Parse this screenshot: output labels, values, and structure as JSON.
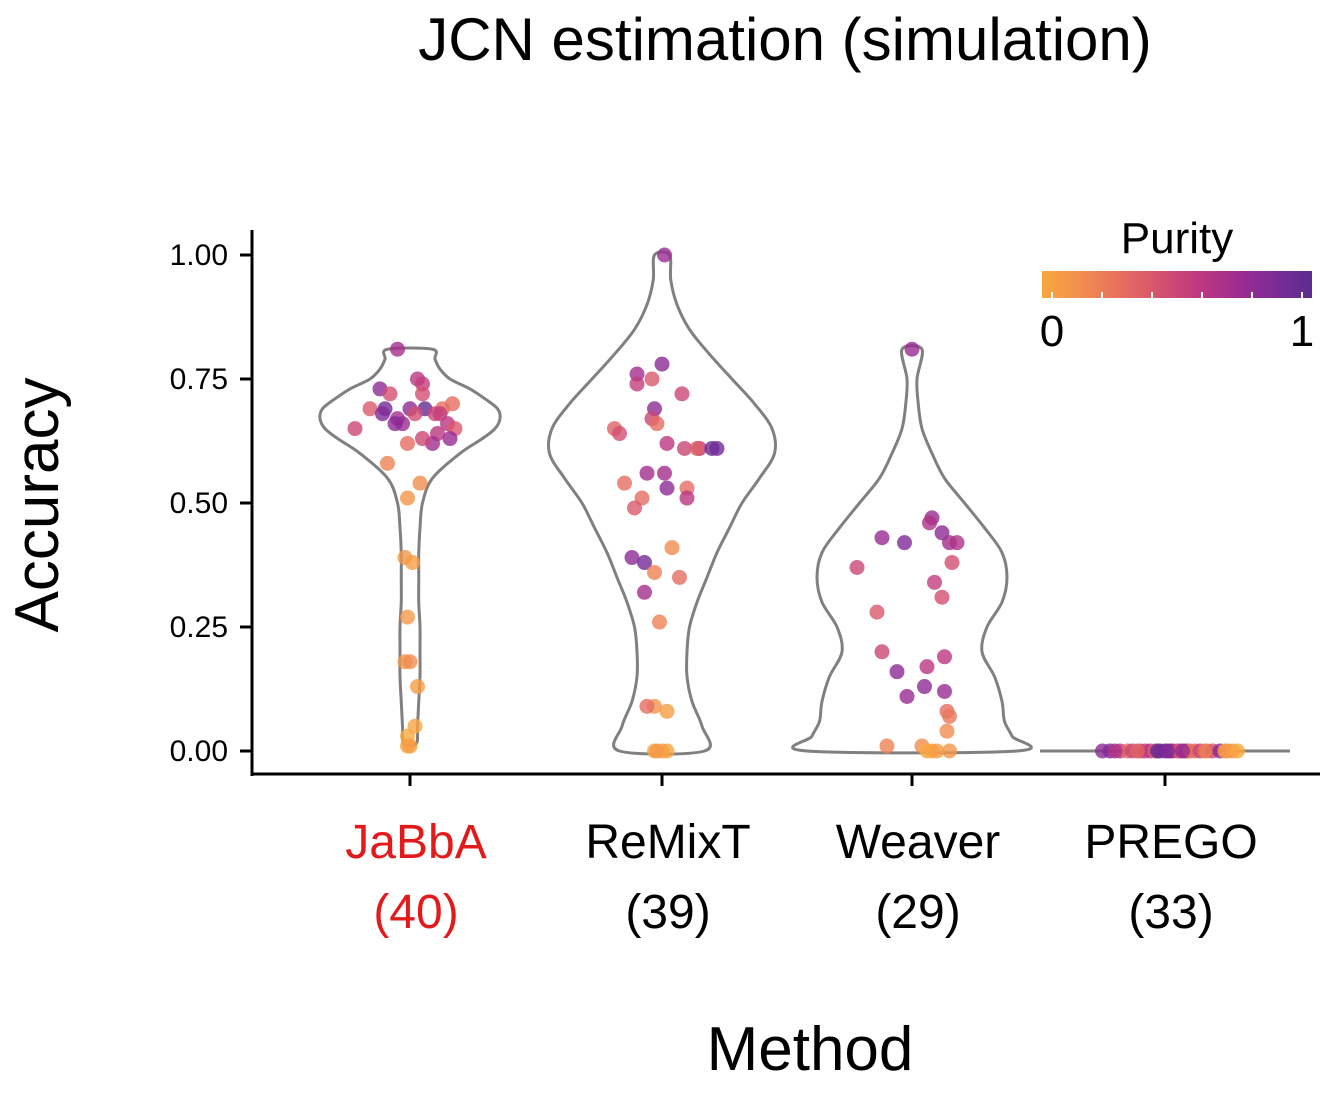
{
  "chart_data": {
    "type": "violin",
    "title": "JCN estimation (simulation)",
    "xlabel": "Method",
    "ylabel": "Accuracy",
    "ylim": [
      0,
      1
    ],
    "yticks": [
      "0.00",
      "0.25",
      "0.50",
      "0.75",
      "1.00"
    ],
    "highlight_color": "#e31a1c",
    "categories": [
      {
        "name": "JaBbA",
        "count_label": "(40)",
        "highlight": true,
        "points": [
          [
            -0.05,
            0.81,
            0.7
          ],
          [
            -0.12,
            0.73,
            0.8
          ],
          [
            0.03,
            0.75,
            0.6
          ],
          [
            0.05,
            0.74,
            0.55
          ],
          [
            -0.08,
            0.72,
            0.45
          ],
          [
            -0.16,
            0.69,
            0.4
          ],
          [
            -0.1,
            0.69,
            0.9
          ],
          [
            -0.11,
            0.68,
            0.85
          ],
          [
            0.0,
            0.69,
            0.8
          ],
          [
            0.06,
            0.69,
            0.95
          ],
          [
            0.13,
            0.69,
            0.3
          ],
          [
            0.17,
            0.7,
            0.3
          ],
          [
            0.1,
            0.68,
            0.5
          ],
          [
            -0.05,
            0.67,
            0.7
          ],
          [
            -0.03,
            0.66,
            0.75
          ],
          [
            0.12,
            0.68,
            0.55
          ],
          [
            0.15,
            0.66,
            0.6
          ],
          [
            -0.22,
            0.65,
            0.5
          ],
          [
            0.18,
            0.65,
            0.4
          ],
          [
            -0.06,
            0.66,
            0.8
          ],
          [
            0.11,
            0.64,
            0.6
          ],
          [
            0.16,
            0.63,
            0.75
          ],
          [
            0.09,
            0.62,
            0.7
          ],
          [
            0.05,
            0.63,
            0.5
          ],
          [
            -0.01,
            0.62,
            0.3
          ],
          [
            0.02,
            0.68,
            0.45
          ],
          [
            -0.09,
            0.58,
            0.2
          ],
          [
            0.04,
            0.54,
            0.15
          ],
          [
            -0.01,
            0.51,
            0.1
          ],
          [
            -0.02,
            0.39,
            0.1
          ],
          [
            0.01,
            0.38,
            0.05
          ],
          [
            -0.01,
            0.27,
            0.08
          ],
          [
            -0.02,
            0.18,
            0.1
          ],
          [
            0.0,
            0.18,
            0.15
          ],
          [
            0.03,
            0.13,
            0.05
          ],
          [
            0.02,
            0.05,
            0.03
          ],
          [
            -0.01,
            0.03,
            0.0
          ],
          [
            -0.01,
            0.01,
            0.02
          ],
          [
            0.0,
            0.01,
            0.05
          ],
          [
            0.05,
            0.72,
            0.45
          ]
        ],
        "violin": [
          [
            0.015,
            0.025
          ],
          [
            0.05,
            0.03
          ],
          [
            0.1,
            0.035
          ],
          [
            0.15,
            0.04
          ],
          [
            0.2,
            0.04
          ],
          [
            0.25,
            0.04
          ],
          [
            0.3,
            0.035
          ],
          [
            0.35,
            0.035
          ],
          [
            0.4,
            0.035
          ],
          [
            0.45,
            0.04
          ],
          [
            0.5,
            0.05
          ],
          [
            0.55,
            0.09
          ],
          [
            0.6,
            0.2
          ],
          [
            0.63,
            0.29
          ],
          [
            0.65,
            0.34
          ],
          [
            0.67,
            0.36
          ],
          [
            0.69,
            0.35
          ],
          [
            0.71,
            0.3
          ],
          [
            0.73,
            0.24
          ],
          [
            0.75,
            0.16
          ],
          [
            0.77,
            0.12
          ],
          [
            0.79,
            0.1
          ],
          [
            0.81,
            0.09
          ]
        ]
      },
      {
        "name": "ReMixT",
        "count_label": "(39)",
        "highlight": false,
        "points": [
          [
            0.01,
            1.0,
            0.75
          ],
          [
            0.0,
            0.78,
            0.8
          ],
          [
            -0.1,
            0.76,
            0.7
          ],
          [
            -0.04,
            0.75,
            0.4
          ],
          [
            -0.1,
            0.74,
            0.55
          ],
          [
            0.08,
            0.72,
            0.5
          ],
          [
            -0.03,
            0.69,
            0.8
          ],
          [
            -0.04,
            0.67,
            0.5
          ],
          [
            -0.02,
            0.66,
            0.3
          ],
          [
            -0.19,
            0.65,
            0.35
          ],
          [
            -0.17,
            0.64,
            0.45
          ],
          [
            0.02,
            0.62,
            0.6
          ],
          [
            0.09,
            0.61,
            0.5
          ],
          [
            0.15,
            0.61,
            0.6
          ],
          [
            0.2,
            0.61,
            0.95
          ],
          [
            0.22,
            0.61,
            0.9
          ],
          [
            0.14,
            0.61,
            0.35
          ],
          [
            -0.06,
            0.56,
            0.7
          ],
          [
            -0.15,
            0.54,
            0.3
          ],
          [
            0.01,
            0.56,
            0.7
          ],
          [
            0.1,
            0.53,
            0.3
          ],
          [
            0.02,
            0.53,
            0.8
          ],
          [
            0.1,
            0.51,
            0.6
          ],
          [
            -0.08,
            0.51,
            0.3
          ],
          [
            -0.11,
            0.49,
            0.4
          ],
          [
            0.04,
            0.41,
            0.15
          ],
          [
            -0.12,
            0.39,
            0.8
          ],
          [
            -0.07,
            0.38,
            0.9
          ],
          [
            -0.03,
            0.36,
            0.2
          ],
          [
            0.07,
            0.35,
            0.3
          ],
          [
            -0.07,
            0.32,
            0.7
          ],
          [
            -0.01,
            0.26,
            0.2
          ],
          [
            -0.03,
            0.09,
            0.1
          ],
          [
            0.02,
            0.08,
            0.05
          ],
          [
            -0.06,
            0.09,
            0.3
          ],
          [
            -0.03,
            0.0,
            0.0
          ],
          [
            0.0,
            0.0,
            0.05
          ],
          [
            0.02,
            0.0,
            0.02
          ],
          [
            -0.02,
            0.0,
            0.08
          ]
        ],
        "violin": [
          [
            0.0,
            0.17
          ],
          [
            0.05,
            0.16
          ],
          [
            0.1,
            0.12
          ],
          [
            0.15,
            0.1
          ],
          [
            0.2,
            0.1
          ],
          [
            0.25,
            0.11
          ],
          [
            0.3,
            0.14
          ],
          [
            0.35,
            0.18
          ],
          [
            0.4,
            0.22
          ],
          [
            0.45,
            0.27
          ],
          [
            0.5,
            0.32
          ],
          [
            0.55,
            0.39
          ],
          [
            0.6,
            0.45
          ],
          [
            0.65,
            0.44
          ],
          [
            0.7,
            0.37
          ],
          [
            0.75,
            0.28
          ],
          [
            0.8,
            0.19
          ],
          [
            0.85,
            0.11
          ],
          [
            0.9,
            0.06
          ],
          [
            0.95,
            0.035
          ],
          [
            1.0,
            0.03
          ]
        ]
      },
      {
        "name": "Weaver",
        "count_label": "(29)",
        "highlight": false,
        "points": [
          [
            0.0,
            0.81,
            0.75
          ],
          [
            0.08,
            0.47,
            0.75
          ],
          [
            0.07,
            0.46,
            0.65
          ],
          [
            0.12,
            0.44,
            0.8
          ],
          [
            0.15,
            0.42,
            0.7
          ],
          [
            0.18,
            0.42,
            0.65
          ],
          [
            -0.12,
            0.43,
            0.75
          ],
          [
            -0.03,
            0.42,
            0.85
          ],
          [
            0.16,
            0.38,
            0.45
          ],
          [
            -0.22,
            0.37,
            0.5
          ],
          [
            0.09,
            0.34,
            0.55
          ],
          [
            0.12,
            0.31,
            0.45
          ],
          [
            -0.14,
            0.28,
            0.4
          ],
          [
            -0.12,
            0.2,
            0.5
          ],
          [
            0.13,
            0.19,
            0.6
          ],
          [
            -0.06,
            0.16,
            0.8
          ],
          [
            0.06,
            0.17,
            0.6
          ],
          [
            0.05,
            0.13,
            0.8
          ],
          [
            -0.02,
            0.11,
            0.75
          ],
          [
            0.13,
            0.12,
            0.75
          ],
          [
            0.14,
            0.08,
            0.3
          ],
          [
            0.15,
            0.07,
            0.25
          ],
          [
            0.14,
            0.04,
            0.15
          ],
          [
            -0.1,
            0.01,
            0.2
          ],
          [
            0.04,
            0.01,
            0.15
          ],
          [
            0.08,
            0.0,
            0.05
          ],
          [
            0.15,
            0.0,
            0.1
          ],
          [
            0.06,
            0.0,
            0.0
          ],
          [
            0.1,
            0.0,
            0.05
          ]
        ],
        "violin": [
          [
            0.0,
            0.42
          ],
          [
            0.03,
            0.4
          ],
          [
            0.06,
            0.37
          ],
          [
            0.1,
            0.36
          ],
          [
            0.15,
            0.33
          ],
          [
            0.2,
            0.28
          ],
          [
            0.25,
            0.3
          ],
          [
            0.3,
            0.36
          ],
          [
            0.35,
            0.38
          ],
          [
            0.4,
            0.36
          ],
          [
            0.45,
            0.29
          ],
          [
            0.5,
            0.21
          ],
          [
            0.55,
            0.13
          ],
          [
            0.6,
            0.08
          ],
          [
            0.65,
            0.04
          ],
          [
            0.7,
            0.025
          ],
          [
            0.75,
            0.02
          ],
          [
            0.81,
            0.04
          ]
        ]
      },
      {
        "name": "PREGO",
        "count_label": "(33)",
        "highlight": false,
        "points": [
          [
            -0.25,
            0.0,
            0.8
          ],
          [
            -0.22,
            0.0,
            0.85
          ],
          [
            -0.18,
            0.0,
            0.6
          ],
          [
            -0.15,
            0.0,
            0.3
          ],
          [
            -0.13,
            0.0,
            0.5
          ],
          [
            -0.1,
            0.0,
            0.45
          ],
          [
            -0.08,
            0.0,
            0.55
          ],
          [
            -0.06,
            0.0,
            0.6
          ],
          [
            -0.04,
            0.0,
            0.35
          ],
          [
            -0.02,
            0.0,
            0.75
          ],
          [
            0.0,
            0.0,
            0.9
          ],
          [
            0.02,
            0.0,
            0.7
          ],
          [
            0.03,
            0.0,
            0.8
          ],
          [
            0.05,
            0.0,
            0.5
          ],
          [
            0.06,
            0.0,
            0.4
          ],
          [
            0.08,
            0.0,
            0.6
          ],
          [
            0.09,
            0.0,
            0.7
          ],
          [
            0.1,
            0.0,
            0.2
          ],
          [
            0.12,
            0.0,
            0.3
          ],
          [
            0.14,
            0.0,
            0.5
          ],
          [
            0.17,
            0.0,
            0.15
          ],
          [
            0.19,
            0.0,
            0.45
          ],
          [
            0.22,
            0.0,
            0.8
          ],
          [
            0.25,
            0.0,
            0.2
          ],
          [
            0.27,
            0.0,
            0.1
          ],
          [
            -0.2,
            0.0,
            0.65
          ],
          [
            -0.11,
            0.0,
            0.35
          ],
          [
            -0.03,
            0.0,
            0.95
          ],
          [
            0.01,
            0.0,
            0.85
          ],
          [
            0.07,
            0.0,
            0.75
          ],
          [
            0.16,
            0.0,
            0.25
          ],
          [
            0.24,
            0.0,
            0.05
          ],
          [
            0.29,
            0.0,
            0.0
          ]
        ],
        "violin": [
          [
            0.0,
            0.5
          ]
        ]
      }
    ],
    "legend": {
      "title": "Purity",
      "min_label": "0",
      "max_label": "1",
      "placement": "top-right",
      "colors": [
        "#f9a73e",
        "#f28e4f",
        "#e7705e",
        "#d6536e",
        "#c0397e",
        "#a12c8f",
        "#7d2b98",
        "#5b2c8f"
      ]
    },
    "point_alpha": 0.8,
    "violin_stroke": "#808080"
  }
}
